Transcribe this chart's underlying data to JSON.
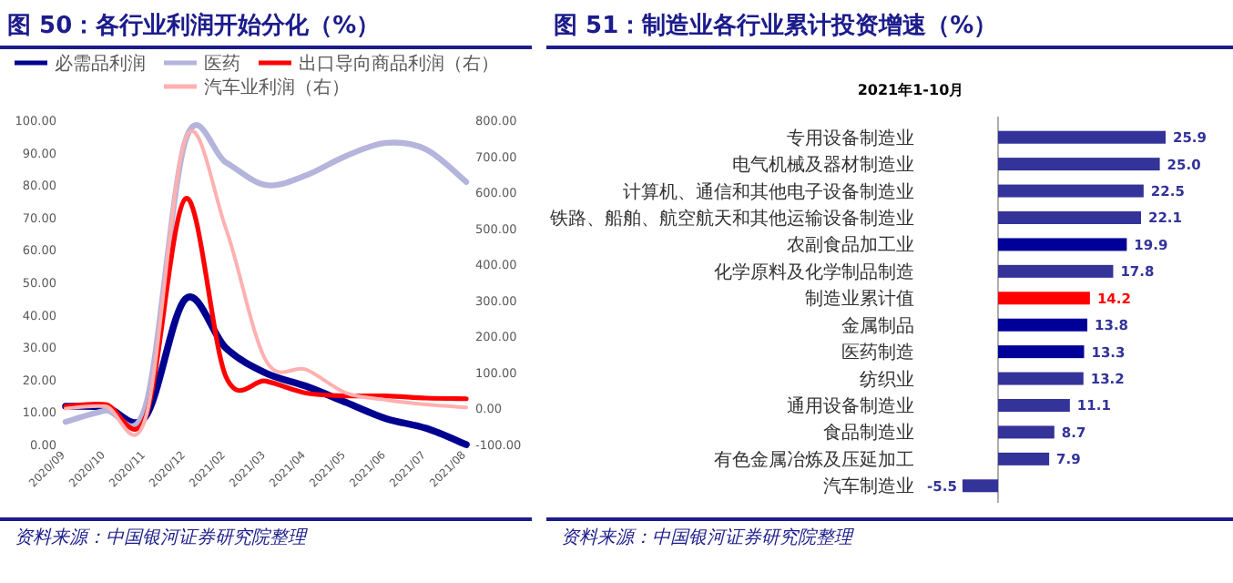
{
  "chart_data": [
    {
      "type": "line",
      "title": "图 50：各行业利润开始分化（%）",
      "categories": [
        "2020/09",
        "2020/10",
        "2020/11",
        "2020/12",
        "2021/02",
        "2021/03",
        "2021/04",
        "2021/05",
        "2021/06",
        "2021/07",
        "2021/08"
      ],
      "series": [
        {
          "name": "必需品利润",
          "color": "#000090",
          "values": [
            11.8,
            11.5,
            8.7,
            45,
            29.8,
            22,
            18,
            13,
            8,
            5,
            0
          ]
        },
        {
          "name": "医药",
          "color": "#b4b4dc",
          "values": [
            7,
            10.5,
            12,
            94,
            87,
            80,
            83,
            89,
            93,
            91,
            81
          ]
        },
        {
          "name": "出口导向商品利润（右）",
          "color": "#ff0000",
          "axis": "y2",
          "values": [
            6,
            11,
            -22,
            583,
            89,
            76,
            43,
            35,
            35,
            29,
            27
          ]
        },
        {
          "name": "汽车业利润（右）",
          "color": "#ffb0b0",
          "axis": "y2",
          "values": [
            0,
            6,
            -25,
            751,
            500,
            133,
            108,
            43,
            24,
            11,
            3
          ]
        }
      ],
      "ylim": [
        0,
        100
      ],
      "yticks": [
        {
          "value": 0,
          "label": "0.00"
        },
        {
          "value": 10,
          "label": "10.00"
        },
        {
          "value": 20,
          "label": "20.00"
        },
        {
          "value": 30,
          "label": "30.00"
        },
        {
          "value": 40,
          "label": "40.00"
        },
        {
          "value": 50,
          "label": "50.00"
        },
        {
          "value": 60,
          "label": "60.00"
        },
        {
          "value": 70,
          "label": "70.00"
        },
        {
          "value": 80,
          "label": "80.00"
        },
        {
          "value": 90,
          "label": "90.00"
        },
        {
          "value": 100,
          "label": "100.00"
        }
      ],
      "y2lim": [
        -100,
        800
      ],
      "y2ticks": [
        {
          "value": -100,
          "label": "-100.00"
        },
        {
          "value": 0,
          "label": "0.00"
        },
        {
          "value": 100,
          "label": "100.00"
        },
        {
          "value": 200,
          "label": "200.00"
        },
        {
          "value": 300,
          "label": "300.00"
        },
        {
          "value": 400,
          "label": "400.00"
        },
        {
          "value": 500,
          "label": "500.00"
        },
        {
          "value": 600,
          "label": "600.00"
        },
        {
          "value": 700,
          "label": "700.00"
        },
        {
          "value": 800,
          "label": "800.00"
        }
      ],
      "legend": "top",
      "annotations": [
        "资料来源：中国银河证券研究院整理"
      ]
    },
    {
      "type": "bar",
      "orientation": "horizontal",
      "title": "图 51：制造业各行业累计投资增速（%）",
      "subtitle": "2021年1-10月",
      "categories": [
        "专用设备制造业",
        "电气机械及器材制造业",
        "计算机、通信和其他电子设备制造业",
        "铁路、船舶、航空航天和其他运输设备制造业",
        "农副食品加工业",
        "化学原料及化学制品制造",
        "制造业累计值",
        "金属制品",
        "医药制造",
        "纺织业",
        "通用设备制造业",
        "食品制造业",
        "有色金属冶炼及压延加工",
        "汽车制造业"
      ],
      "values": [
        25.9,
        25.0,
        22.5,
        22.1,
        19.9,
        17.8,
        14.2,
        13.8,
        13.3,
        13.2,
        11.1,
        8.7,
        7.9,
        -5.5
      ],
      "value_labels": [
        "25.9",
        "25.0",
        "22.5",
        "22.1",
        "19.9",
        "17.8",
        "14.2",
        "13.8",
        "13.3",
        "13.2",
        "11.1",
        "8.7",
        "7.9",
        "-5.5"
      ],
      "colors": [
        "#333399",
        "#333399",
        "#333399",
        "#333399",
        "#000099",
        "#333399",
        "#ff0000",
        "#000099",
        "#000099",
        "#333399",
        "#333399",
        "#333399",
        "#333399",
        "#333399"
      ],
      "annotations": [
        "资料来源：中国银河证券研究院整理"
      ]
    }
  ]
}
